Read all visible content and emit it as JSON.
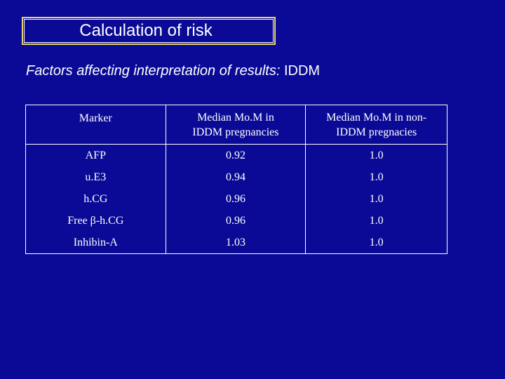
{
  "slide": {
    "title": "Calculation of risk",
    "subtitle_italic": "Factors affecting interpretation of results:",
    "subtitle_plain": " IDDM"
  },
  "table": {
    "headers": [
      [
        "Marker"
      ],
      [
        "Median Mo.M in",
        "IDDM pregnancies"
      ],
      [
        "Median Mo.M in non-",
        "IDDM pregnacies"
      ]
    ],
    "rows": [
      [
        "AFP",
        "0.92",
        "1.0"
      ],
      [
        "u.E3",
        "0.94",
        "1.0"
      ],
      [
        "h.CG",
        "0.96",
        "1.0"
      ],
      [
        "Free β-h.CG",
        "0.96",
        "1.0"
      ],
      [
        "Inhibin-A",
        "1.03",
        "1.0"
      ]
    ]
  },
  "colors": {
    "background": "#0a0a96",
    "title_border": "#e6d36a",
    "text": "#ffffff"
  }
}
